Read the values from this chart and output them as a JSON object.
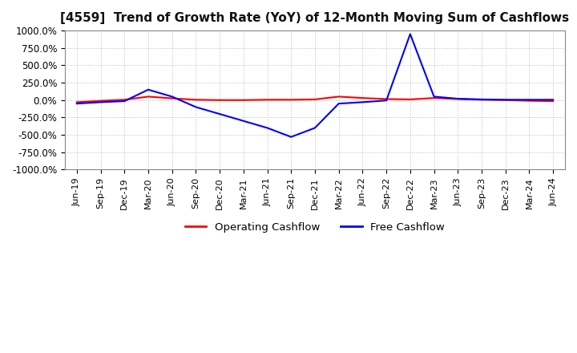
{
  "title": "[4559]  Trend of Growth Rate (YoY) of 12-Month Moving Sum of Cashflows",
  "title_fontsize": 11,
  "ylim": [
    -1000,
    1000
  ],
  "yticks": [
    -1000,
    -750,
    -500,
    -250,
    0,
    250,
    500,
    750,
    1000
  ],
  "yticklabels": [
    "-1000.0%",
    "-750.0%",
    "-500.0%",
    "-250.0%",
    "0.0%",
    "250.0%",
    "500.0%",
    "750.0%",
    "1000.0%"
  ],
  "background_color": "#ffffff",
  "grid_color": "#bbbbbb",
  "operating_color": "#ff0000",
  "free_color": "#0000ff",
  "legend_labels": [
    "Operating Cashflow",
    "Free Cashflow"
  ],
  "x_labels": [
    "Jun-19",
    "Sep-19",
    "Dec-19",
    "Mar-20",
    "Jun-20",
    "Sep-20",
    "Dec-20",
    "Mar-21",
    "Jun-21",
    "Sep-21",
    "Dec-21",
    "Mar-22",
    "Jun-22",
    "Sep-22",
    "Dec-22",
    "Mar-23",
    "Jun-23",
    "Sep-23",
    "Dec-23",
    "Mar-24",
    "Jun-24"
  ],
  "operating_cashflow": [
    -30,
    -10,
    5,
    50,
    25,
    5,
    0,
    0,
    5,
    5,
    10,
    50,
    30,
    15,
    10,
    30,
    15,
    5,
    0,
    -10,
    -15
  ],
  "free_cashflow": [
    -50,
    -30,
    -15,
    150,
    50,
    -100,
    -200,
    -300,
    -400,
    -530,
    -400,
    -50,
    -30,
    -5,
    950,
    50,
    20,
    10,
    5,
    5,
    5
  ]
}
